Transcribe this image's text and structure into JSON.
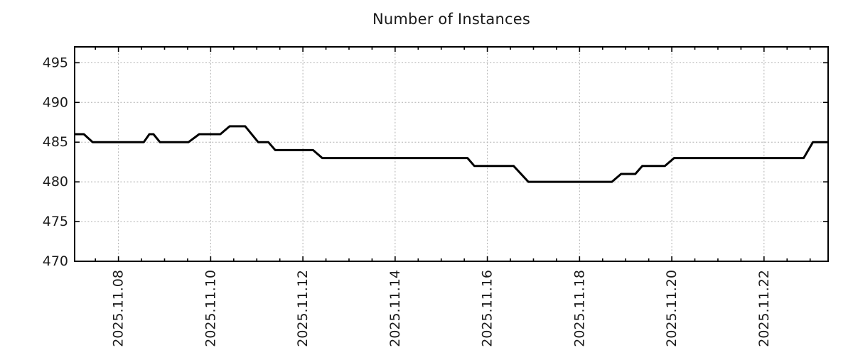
{
  "chart_data": {
    "type": "line",
    "title": "Number of Instances",
    "grid": "dotted",
    "legend": "none",
    "x_axis": {
      "unit": "date",
      "range_days": [
        -0.95,
        15.39
      ],
      "major_tick_interval_days": 2,
      "minor_tick_interval_days": 0.5,
      "tick_positions_days": [
        0,
        2,
        4,
        6,
        8,
        10,
        12,
        14
      ],
      "tick_labels": [
        "2025.11.08",
        "2025.11.10",
        "2025.11.12",
        "2025.11.14",
        "2025.11.16",
        "2025.11.18",
        "2025.11.20",
        "2025.11.22"
      ]
    },
    "y_axis": {
      "range": [
        470,
        497
      ],
      "ticks": [
        470,
        475,
        480,
        485,
        490,
        495
      ]
    },
    "series": [
      {
        "name": "instances",
        "color": "#000000",
        "points_days_value": [
          [
            -0.95,
            486
          ],
          [
            -0.75,
            486
          ],
          [
            -0.56,
            485
          ],
          [
            0.55,
            485
          ],
          [
            0.67,
            486
          ],
          [
            0.76,
            486
          ],
          [
            0.9,
            485
          ],
          [
            1.52,
            485
          ],
          [
            1.75,
            486
          ],
          [
            2.21,
            486
          ],
          [
            2.41,
            487
          ],
          [
            2.75,
            487
          ],
          [
            3.03,
            485
          ],
          [
            3.25,
            485
          ],
          [
            3.4,
            484
          ],
          [
            4.22,
            484
          ],
          [
            4.42,
            483
          ],
          [
            7.57,
            483
          ],
          [
            7.72,
            482
          ],
          [
            8.57,
            482
          ],
          [
            8.89,
            480
          ],
          [
            10.7,
            480
          ],
          [
            10.9,
            481
          ],
          [
            11.21,
            481
          ],
          [
            11.36,
            482
          ],
          [
            11.85,
            482
          ],
          [
            12.05,
            483
          ],
          [
            14.86,
            483
          ],
          [
            15.06,
            485
          ],
          [
            15.39,
            485
          ]
        ]
      }
    ],
    "colors": {
      "line": "#000000",
      "border": "#000000",
      "grid": "#b0b0b0",
      "text": "#1a1a1a",
      "background": "#ffffff"
    }
  }
}
